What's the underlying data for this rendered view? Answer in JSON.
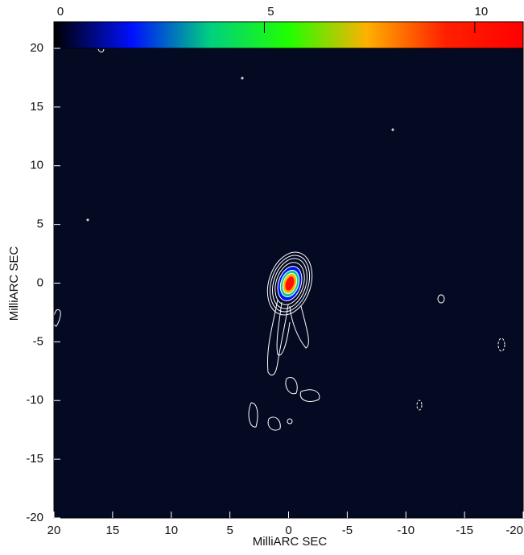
{
  "chart_data": {
    "type": "image",
    "xlabel": "MilliARC SEC",
    "ylabel": "MilliARC SEC",
    "xlim": [
      20,
      -20
    ],
    "ylim": [
      -20,
      20
    ],
    "xticks": [
      20,
      15,
      10,
      5,
      0,
      -5,
      -10,
      -15,
      -20
    ],
    "yticks": [
      -20,
      -15,
      -10,
      -5,
      0,
      5,
      10,
      15,
      20
    ],
    "background": "#040a22",
    "colorbar": {
      "lim": [
        0,
        11.15
      ],
      "ticks": [
        0,
        5,
        10
      ],
      "colors": [
        "#000000",
        "#0010ff",
        "#00d080",
        "#20ff00",
        "#ffb000",
        "#ff2000",
        "#ff0000"
      ]
    }
  }
}
